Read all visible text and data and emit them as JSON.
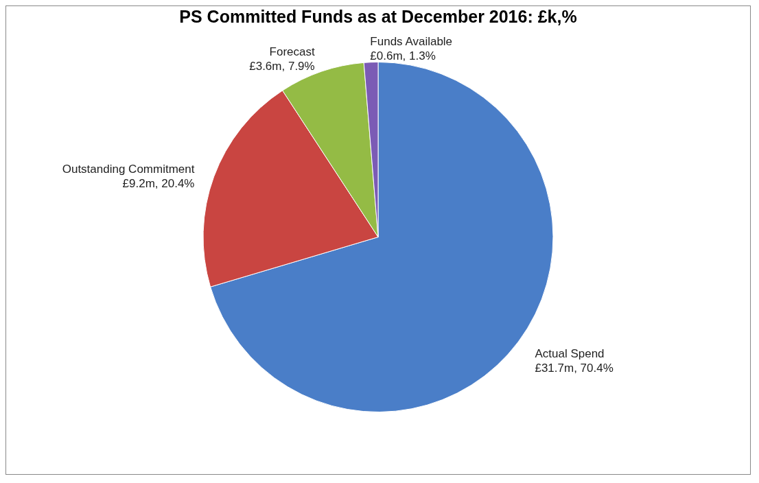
{
  "chart_data": {
    "type": "pie",
    "title": "PS Committed Funds as at December 2016: £k,%",
    "categories": [
      "Actual Spend",
      "Outstanding Commitment",
      "Forecast",
      "Funds Available"
    ],
    "values": [
      70.4,
      20.4,
      7.9,
      1.3
    ],
    "value_labels": [
      "£31.7m, 70.4%",
      "£9.2m, 20.4%",
      "£3.6m, 7.9%",
      "£0.6m, 1.3%"
    ],
    "colors": [
      "#4a7ec8",
      "#c94541",
      "#94bb45",
      "#7b5bb5"
    ],
    "legend": false
  }
}
